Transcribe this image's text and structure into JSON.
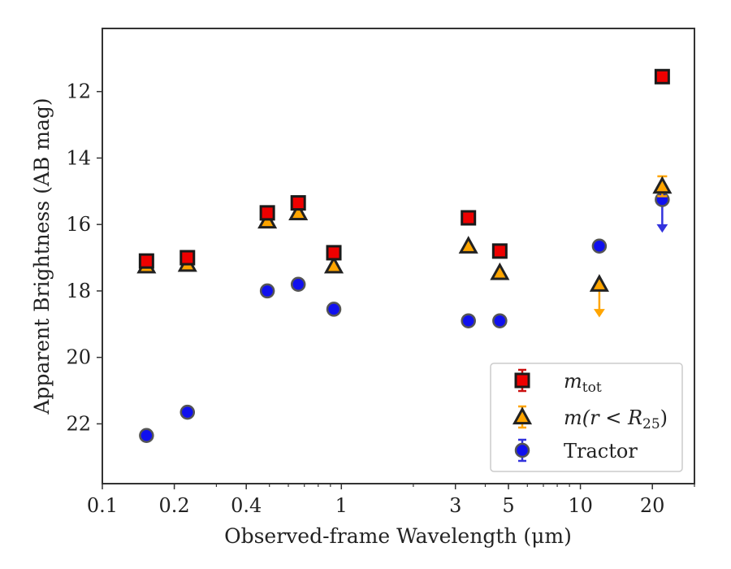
{
  "chart_data": {
    "type": "scatter",
    "xlabel": "Observed-frame Wavelength (μm)",
    "ylabel": "Apparent Brightness (AB mag)",
    "x_scale": "log",
    "xlim": [
      0.1,
      30
    ],
    "ylim": [
      23.8,
      10.1
    ],
    "y_inverted": true,
    "x_ticks": [
      {
        "value": 0.1,
        "label": "0.1"
      },
      {
        "value": 0.2,
        "label": "0.2"
      },
      {
        "value": 0.4,
        "label": "0.4"
      },
      {
        "value": 1,
        "label": "1"
      },
      {
        "value": 3,
        "label": "3"
      },
      {
        "value": 5,
        "label": "5"
      },
      {
        "value": 10,
        "label": "10"
      },
      {
        "value": 20,
        "label": "20"
      }
    ],
    "y_ticks": [
      {
        "value": 12,
        "label": "12"
      },
      {
        "value": 14,
        "label": "14"
      },
      {
        "value": 16,
        "label": "16"
      },
      {
        "value": 18,
        "label": "18"
      },
      {
        "value": 20,
        "label": "20"
      },
      {
        "value": 22,
        "label": "22"
      }
    ],
    "grid": false,
    "legend_position": "bottom-right",
    "series": [
      {
        "name": "m_tot",
        "legend_main": "m",
        "legend_sub": "tot",
        "marker": "square",
        "color": "#ee0000",
        "errcolor": "#cc1111",
        "points": [
          {
            "x": 0.153,
            "y": 17.1
          },
          {
            "x": 0.227,
            "y": 17.0
          },
          {
            "x": 0.49,
            "y": 15.65
          },
          {
            "x": 0.66,
            "y": 15.35
          },
          {
            "x": 0.93,
            "y": 16.85
          },
          {
            "x": 3.4,
            "y": 15.8
          },
          {
            "x": 4.6,
            "y": 16.8
          },
          {
            "x": 22.0,
            "y": 11.55
          }
        ]
      },
      {
        "name": "m(r < R25)",
        "legend_main": "m(r < R",
        "legend_sub": "25",
        "legend_tail": ")",
        "marker": "triangle",
        "color": "#ffa500",
        "errcolor": "#ffa500",
        "points": [
          {
            "x": 0.153,
            "y": 17.25
          },
          {
            "x": 0.227,
            "y": 17.2
          },
          {
            "x": 0.49,
            "y": 15.9
          },
          {
            "x": 0.66,
            "y": 15.65
          },
          {
            "x": 0.93,
            "y": 17.25
          },
          {
            "x": 3.4,
            "y": 16.65
          },
          {
            "x": 4.6,
            "y": 17.45
          },
          {
            "x": 12.0,
            "y": 17.8,
            "upper_limit": true,
            "arrow_to": 18.75
          },
          {
            "x": 22.0,
            "y": 14.85,
            "yerr": 0.3
          }
        ]
      },
      {
        "name": "Tractor",
        "legend_main": "Tractor",
        "marker": "circle",
        "color": "#1010ee",
        "errcolor": "#3333dd",
        "points": [
          {
            "x": 0.153,
            "y": 22.35
          },
          {
            "x": 0.227,
            "y": 21.65
          },
          {
            "x": 0.49,
            "y": 18.0
          },
          {
            "x": 0.66,
            "y": 17.8
          },
          {
            "x": 0.93,
            "y": 18.55
          },
          {
            "x": 3.4,
            "y": 18.9
          },
          {
            "x": 4.6,
            "y": 18.9
          },
          {
            "x": 12.0,
            "y": 16.65
          },
          {
            "x": 22.0,
            "y": 15.25,
            "upper_limit": true,
            "arrow_to": 16.2
          }
        ]
      }
    ]
  }
}
